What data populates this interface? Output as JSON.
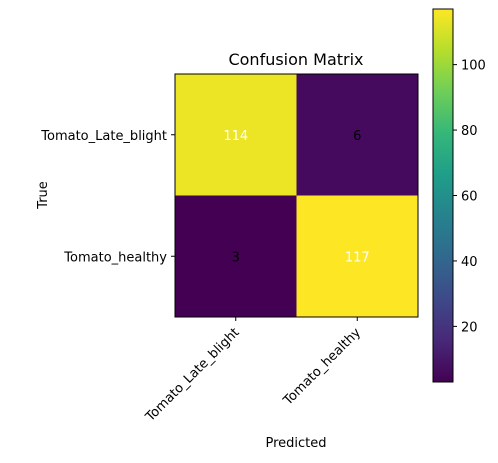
{
  "chart_data": {
    "type": "heatmap",
    "title": "Confusion Matrix",
    "xlabel": "Predicted",
    "ylabel": "True",
    "x_categories": [
      "Tomato_Late_blight",
      "Tomato_healthy"
    ],
    "y_categories": [
      "Tomato_Late_blight",
      "Tomato_healthy"
    ],
    "values": [
      [
        114,
        6
      ],
      [
        3,
        117
      ]
    ],
    "colormap": "viridis",
    "color_range": [
      3,
      117
    ],
    "colorbar_ticks": [
      20,
      40,
      60,
      80,
      100
    ],
    "colors": {
      "low": "#440154",
      "high": "#fde725",
      "text_on_dark": "#000000",
      "text_on_light": "#ffffff"
    }
  }
}
